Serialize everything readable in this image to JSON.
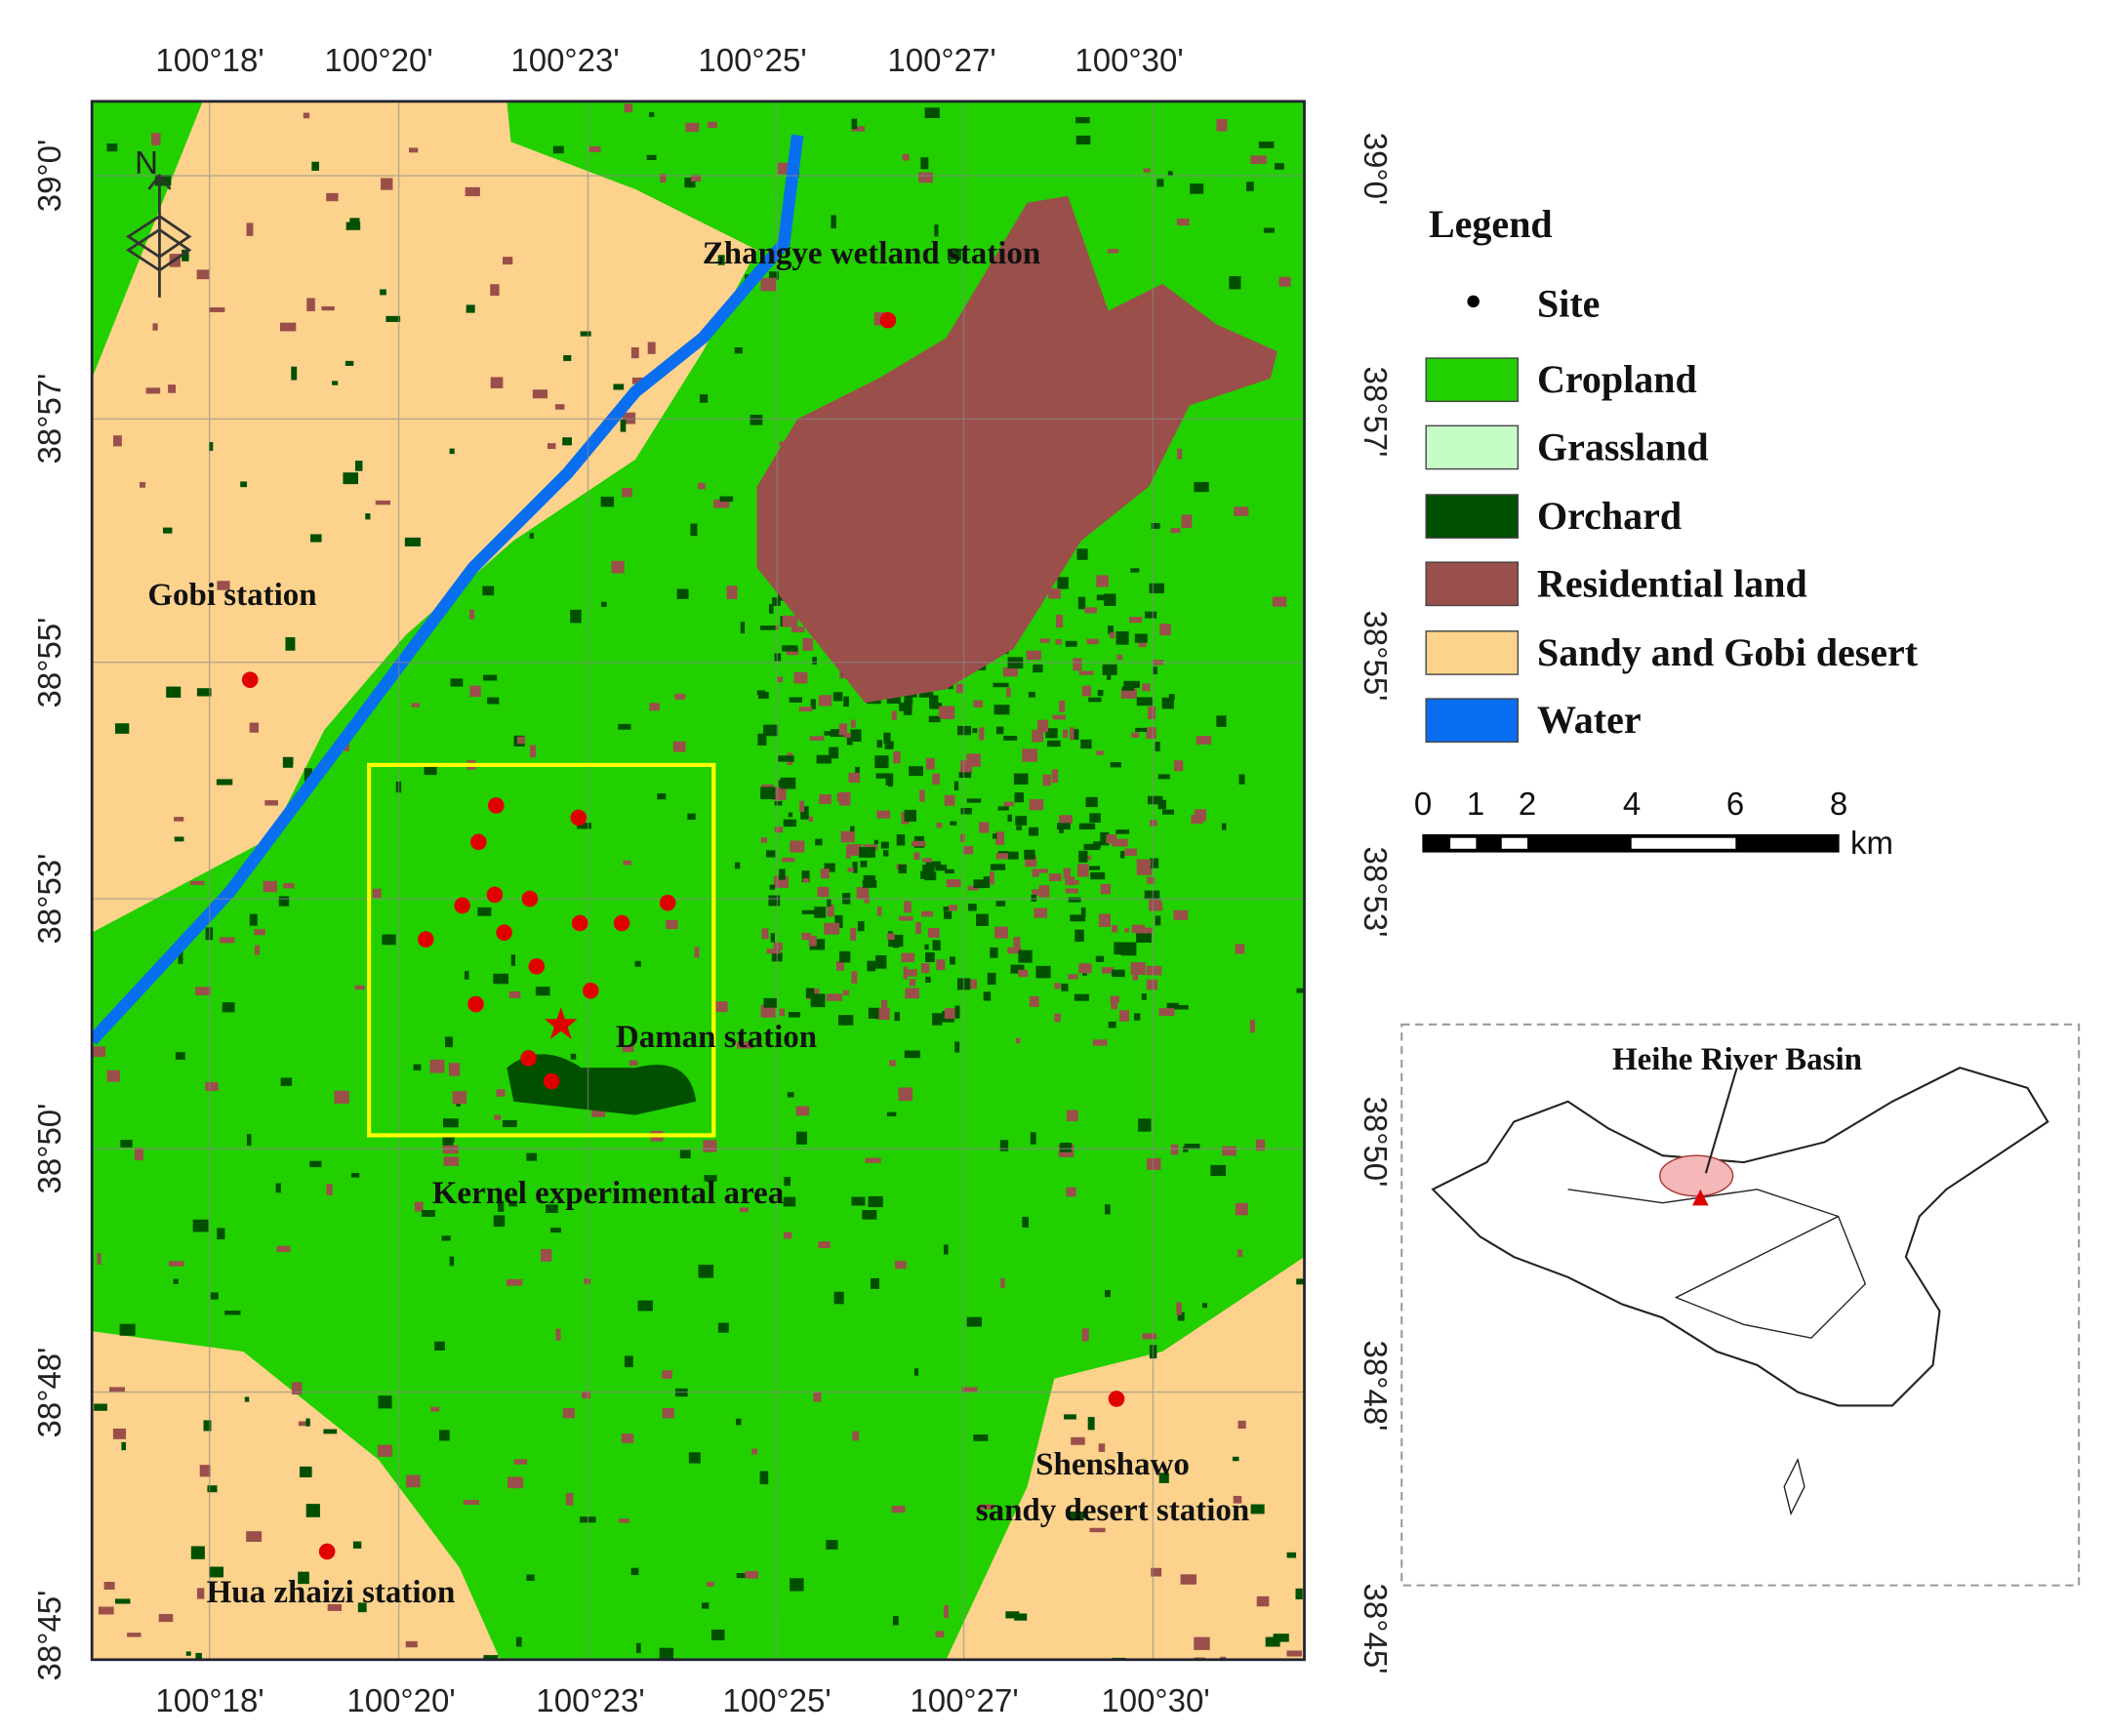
{
  "map": {
    "top_longitudes": [
      "100°18'",
      "100°20'",
      "100°23'",
      "100°25'",
      "100°27'",
      "100°30'"
    ],
    "bottom_longitudes": [
      "100°18'",
      "100°20'",
      "100°23'",
      "100°25'",
      "100°27'",
      "100°30'"
    ],
    "left_latitudes": [
      "39°0'",
      "38°57'",
      "38°55'",
      "38°53'",
      "38°50'",
      "38°48'",
      "38°45'"
    ],
    "right_latitudes": [
      "39°0'",
      "38°57'",
      "38°55'",
      "38°53'",
      "38°50'",
      "38°48'",
      "38°45'"
    ],
    "north": "N",
    "stations": {
      "zhangye": "Zhangye wetland station",
      "gobi": "Gobi station",
      "daman": "Daman station",
      "kernel": "Kernel experimental area",
      "shenshawo_1": "Shenshawo",
      "shenshawo_2": "sandy desert station",
      "huazhaizi": "Hua zhaizi station"
    },
    "legend": {
      "title": "Legend",
      "items": [
        "Site",
        "Cropland",
        "Grassland",
        "Orchard",
        "Residential land",
        "Sandy and Gobi desert",
        "Water"
      ]
    },
    "scale_bar": {
      "labels": [
        "0",
        "1",
        "2",
        "4",
        "6",
        "8"
      ],
      "unit": "km"
    },
    "inset": {
      "label": "Heihe River Basin"
    }
  }
}
